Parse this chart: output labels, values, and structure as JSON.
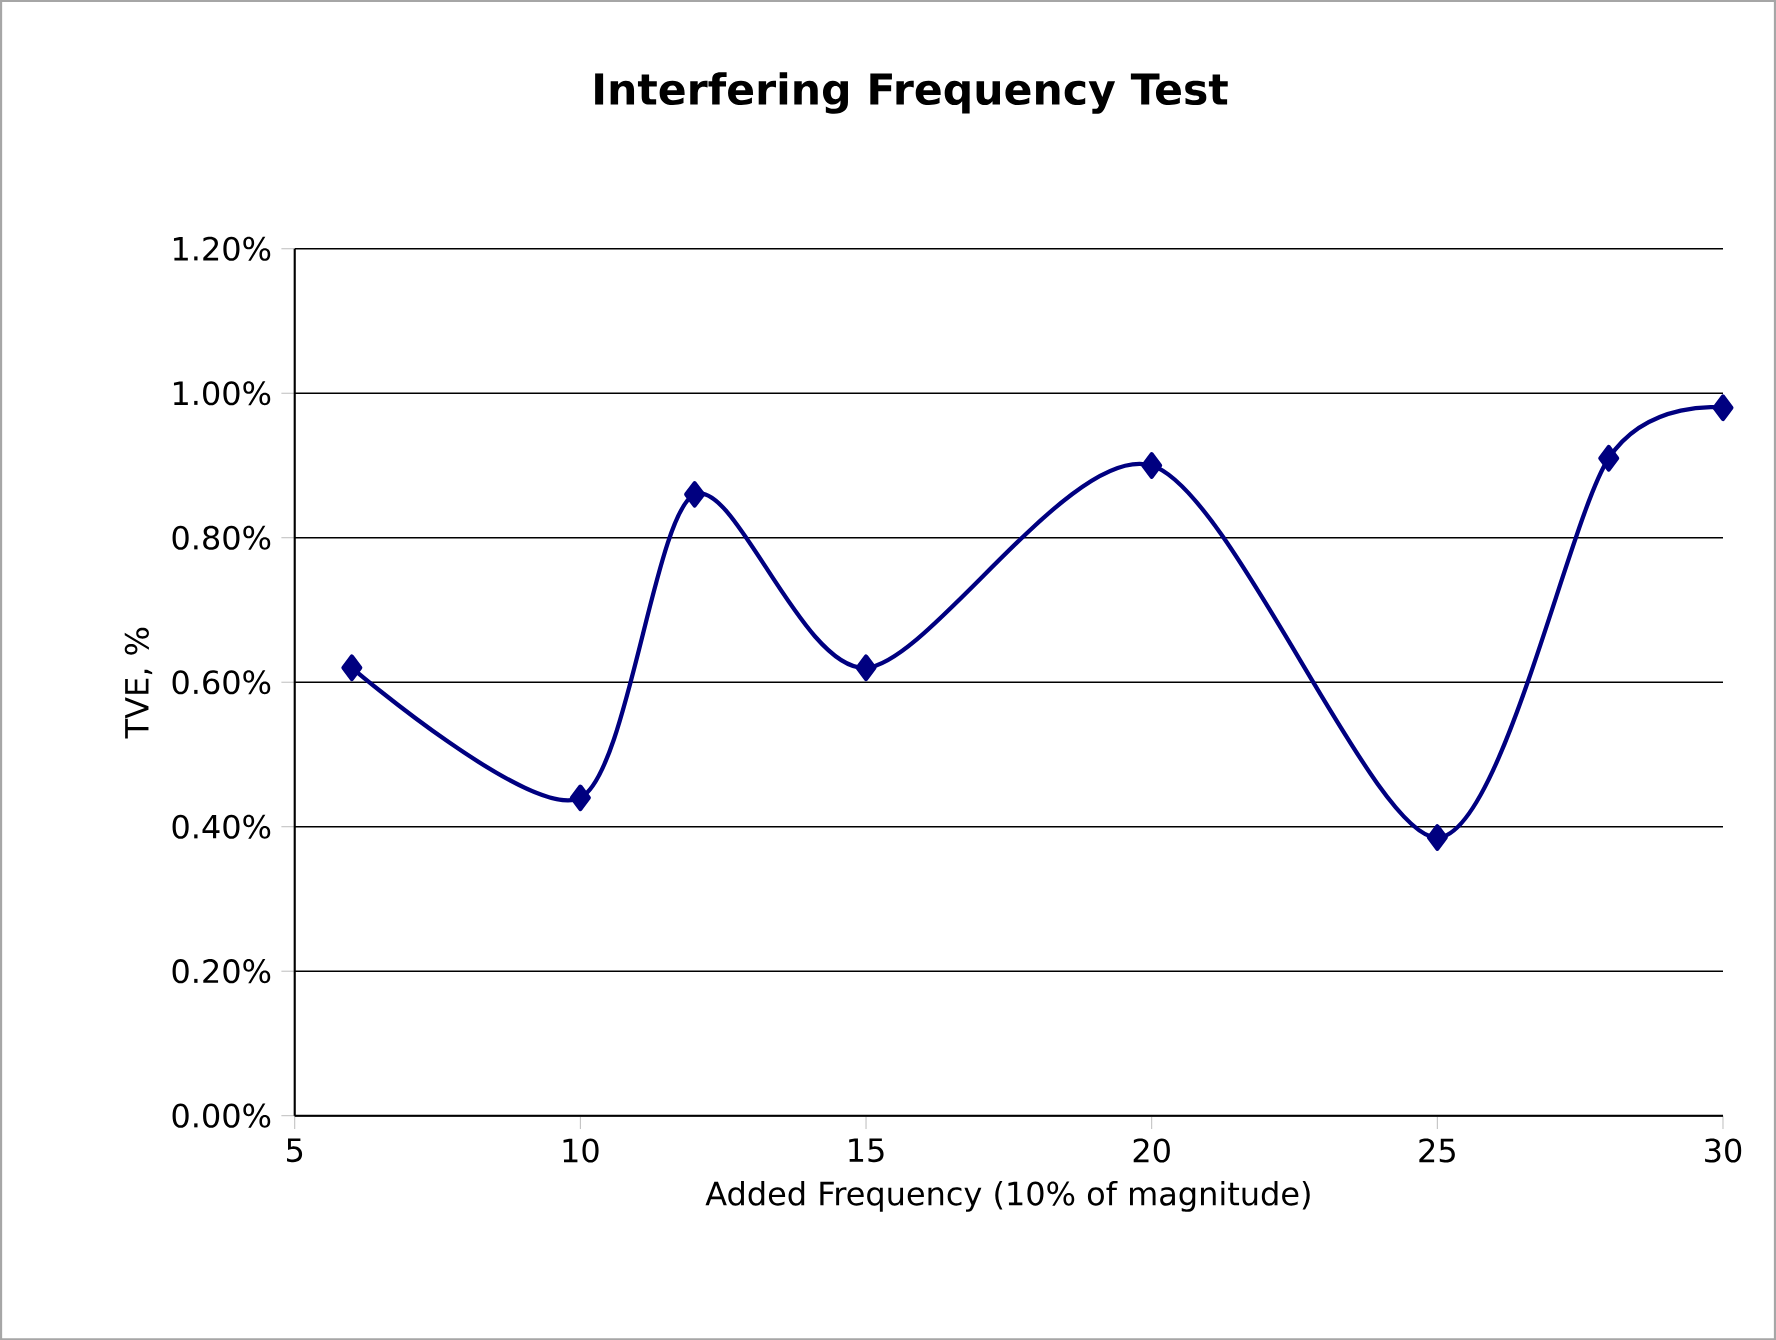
{
  "chart_data": {
    "type": "line",
    "title": "Interfering Frequency Test",
    "xlabel": "Added Frequency (10% of magnitude)",
    "ylabel": "TVE, %",
    "x": [
      6,
      10,
      12,
      15,
      20,
      25,
      28,
      30
    ],
    "series": [
      {
        "color": "#000080",
        "values": [
          0.62,
          0.44,
          0.86,
          0.62,
          0.9,
          0.385,
          0.91,
          0.98
        ]
      }
    ],
    "xlim": [
      5,
      30
    ],
    "xticks": [
      5,
      10,
      15,
      20,
      25,
      30
    ],
    "ylim": [
      0,
      1.2
    ],
    "yticks": [
      {
        "value": 0,
        "label": "0.00%"
      },
      {
        "value": 0.2,
        "label": "0.20%"
      },
      {
        "value": 0.4,
        "label": "0.40%"
      },
      {
        "value": 0.6,
        "label": "0.60%"
      },
      {
        "value": 0.8,
        "label": "0.80%"
      },
      {
        "value": 1.0,
        "label": "1.00%"
      },
      {
        "value": 1.2,
        "label": "1.20%"
      }
    ],
    "grid": "y",
    "marker": "diamond",
    "line_style": "solid"
  }
}
